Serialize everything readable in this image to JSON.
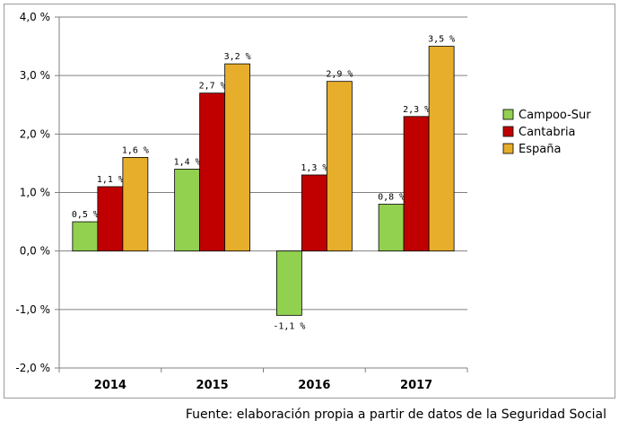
{
  "chart_data": {
    "type": "bar",
    "categories": [
      "2014",
      "2015",
      "2016",
      "2017"
    ],
    "series": [
      {
        "name": "Campoo-Sur",
        "color": "#92d050",
        "values": [
          0.5,
          1.4,
          -1.1,
          0.8
        ],
        "labels": [
          "0,5 %",
          "1,4 %",
          "-1,1 %",
          "0,8 %"
        ]
      },
      {
        "name": "Cantabria",
        "color": "#c00000",
        "values": [
          1.1,
          2.7,
          1.3,
          2.3
        ],
        "labels": [
          "1,1 %",
          "2,7 %",
          "1,3 %",
          "2,3 %"
        ]
      },
      {
        "name": "España",
        "color": "#e6ae2b",
        "values": [
          1.6,
          3.2,
          2.9,
          3.5
        ],
        "labels": [
          "1,6 %",
          "3,2 %",
          "2,9 %",
          "3,5 %"
        ]
      }
    ],
    "ylim": [
      -2.0,
      4.0
    ],
    "yticks": [
      4.0,
      3.0,
      2.0,
      1.0,
      0.0,
      -1.0,
      -2.0
    ],
    "ytick_labels": [
      "4,0 %",
      "3,0 %",
      "2,0 %",
      "1,0 %",
      "0,0 %",
      "-1,0 %",
      "-2,0 %"
    ],
    "grid": true,
    "legend_position": "right"
  },
  "footer": {
    "source": "Fuente: elaboración propia a partir de datos de la Seguridad Social"
  }
}
